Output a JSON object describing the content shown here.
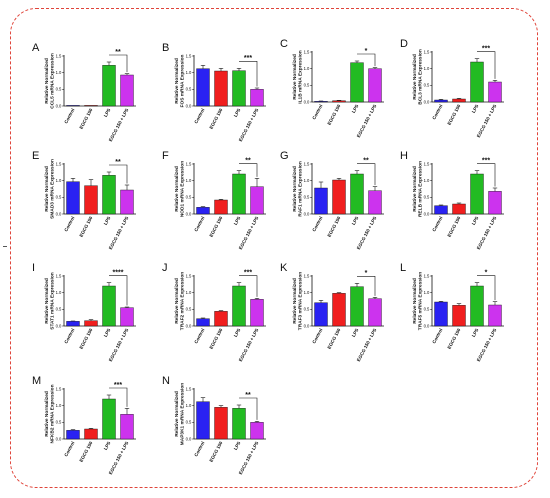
{
  "colors": {
    "Control": "#2a22f2",
    "EGCG 150": "#f01e1e",
    "LPS": "#22bb22",
    "EGCG 150 + LPS": "#cc33ee",
    "frame": "#e0443a"
  },
  "chart_data": [
    {
      "type": "bar",
      "panel": "A",
      "ylabel": "Relative Normalized\nCCL5 mRNA Expression",
      "categories": [
        "Control",
        "EGCG 150",
        "LPS",
        "EGCG 150 + LPS"
      ],
      "values": [
        0.0,
        0.0,
        1.22,
        0.93
      ],
      "errors": [
        0,
        0,
        0.1,
        0.04
      ],
      "ylim": [
        0,
        1.5
      ],
      "yticks": [
        "0.0",
        "0.5",
        "1.0",
        "1.5"
      ],
      "significance": {
        "from": 2,
        "to": 3,
        "label": "**"
      }
    },
    {
      "type": "bar",
      "panel": "B",
      "ylabel": "Relative Normalized\nFOS mRNA Expression",
      "categories": [
        "Control",
        "EGCG 150",
        "LPS",
        "EGCG 150 + LPS"
      ],
      "values": [
        1.12,
        1.05,
        1.06,
        0.5
      ],
      "errors": [
        0.1,
        0.08,
        0.07,
        0.04
      ],
      "ylim": [
        0,
        1.5
      ],
      "yticks": [
        "0.0",
        "0.5",
        "1.0",
        "1.5"
      ],
      "significance": {
        "from": 2,
        "to": 3,
        "label": "***"
      }
    },
    {
      "type": "bar",
      "panel": "C",
      "ylabel": "Relative Normalized\nIL1B mRNA Expression",
      "categories": [
        "Control",
        "EGCG 150",
        "LPS",
        "EGCG 150 + LPS"
      ],
      "values": [
        0.02,
        0.04,
        1.18,
        1.0
      ],
      "errors": [
        0.01,
        0.01,
        0.05,
        0.03
      ],
      "ylim": [
        0,
        1.5
      ],
      "yticks": [
        "0.0",
        "0.5",
        "1.0",
        "1.5"
      ],
      "significance": {
        "from": 2,
        "to": 3,
        "label": "*"
      }
    },
    {
      "type": "bar",
      "panel": "D",
      "ylabel": "Relative Normalized\nBCL3 mRNA Expression",
      "categories": [
        "Control",
        "EGCG 150",
        "LPS",
        "EGCG 150 + LPS"
      ],
      "values": [
        0.06,
        0.09,
        1.2,
        0.6
      ],
      "errors": [
        0.02,
        0.02,
        0.1,
        0.05
      ],
      "ylim": [
        0,
        1.5
      ],
      "yticks": [
        "0.0",
        "0.5",
        "1.0",
        "1.5"
      ],
      "significance": {
        "from": 2,
        "to": 3,
        "label": "***"
      }
    },
    {
      "type": "bar",
      "panel": "E",
      "ylabel": "Relative Normalized\nSMAD3 mRNA Expression",
      "categories": [
        "Control",
        "EGCG 150",
        "LPS",
        "EGCG 150 + LPS"
      ],
      "values": [
        0.97,
        0.85,
        1.16,
        0.72
      ],
      "errors": [
        0.1,
        0.18,
        0.1,
        0.15
      ],
      "ylim": [
        0,
        1.5
      ],
      "yticks": [
        "0.0",
        "0.5",
        "1.0",
        "1.5"
      ],
      "significance": {
        "from": 2,
        "to": 3,
        "label": "**"
      }
    },
    {
      "type": "bar",
      "panel": "F",
      "ylabel": "Relative Normalized\nNOD1 mRNA Expression",
      "categories": [
        "Control",
        "EGCG 150",
        "LPS",
        "EGCG 150 + LPS"
      ],
      "values": [
        0.2,
        0.42,
        1.2,
        0.82
      ],
      "errors": [
        0.02,
        0.02,
        0.1,
        0.25
      ],
      "ylim": [
        0,
        1.5
      ],
      "yticks": [
        "0.0",
        "0.5",
        "1.0",
        "1.5"
      ],
      "significance": {
        "from": 2,
        "to": 3,
        "label": "**"
      }
    },
    {
      "type": "bar",
      "panel": "G",
      "ylabel": "Relative Normalized\nRAF1 mRNA Expression",
      "categories": [
        "Control",
        "EGCG 150",
        "LPS",
        "EGCG 150 + LPS"
      ],
      "values": [
        0.78,
        1.02,
        1.2,
        0.7
      ],
      "errors": [
        0.18,
        0.05,
        0.1,
        0.12
      ],
      "ylim": [
        0,
        1.5
      ],
      "yticks": [
        "0.0",
        "0.5",
        "1.0",
        "1.5"
      ],
      "significance": {
        "from": 2,
        "to": 3,
        "label": "**"
      }
    },
    {
      "type": "bar",
      "panel": "H",
      "ylabel": "Relative Normalized\nRELB mRNA Expression",
      "categories": [
        "Control",
        "EGCG 150",
        "LPS",
        "EGCG 150 + LPS"
      ],
      "values": [
        0.25,
        0.3,
        1.2,
        0.68
      ],
      "errors": [
        0.02,
        0.03,
        0.1,
        0.1
      ],
      "ylim": [
        0,
        1.5
      ],
      "yticks": [
        "0.0",
        "0.5",
        "1.0",
        "1.5"
      ],
      "significance": {
        "from": 2,
        "to": 3,
        "label": "***"
      }
    },
    {
      "type": "bar",
      "panel": "I",
      "ylabel": "Relative Normalized\nSTAT1 mRNA Expression",
      "categories": [
        "Control",
        "EGCG 150",
        "LPS",
        "EGCG 150 + LPS"
      ],
      "values": [
        0.14,
        0.16,
        1.2,
        0.55
      ],
      "errors": [
        0.01,
        0.03,
        0.1,
        0.02
      ],
      "ylim": [
        0,
        1.5
      ],
      "yticks": [
        "0.0",
        "0.5",
        "1.0",
        "1.5"
      ],
      "significance": {
        "from": 2,
        "to": 3,
        "label": "****"
      }
    },
    {
      "type": "bar",
      "panel": "J",
      "ylabel": "Relative Normalized\nTRAF2 mRNA Expression",
      "categories": [
        "Control",
        "EGCG 150",
        "LPS",
        "EGCG 150 + LPS"
      ],
      "values": [
        0.22,
        0.44,
        1.2,
        0.8
      ],
      "errors": [
        0.02,
        0.02,
        0.1,
        0.03
      ],
      "ylim": [
        0,
        1.5
      ],
      "yticks": [
        "0.0",
        "0.5",
        "1.0",
        "1.5"
      ],
      "significance": {
        "from": 2,
        "to": 3,
        "label": "***"
      }
    },
    {
      "type": "bar",
      "panel": "K",
      "ylabel": "Relative Normalized\nTRAF3 mRNA Expression",
      "categories": [
        "Control",
        "EGCG 150",
        "LPS",
        "EGCG 150 + LPS"
      ],
      "values": [
        0.7,
        0.98,
        1.18,
        0.82
      ],
      "errors": [
        0.07,
        0.02,
        0.1,
        0.04
      ],
      "ylim": [
        0,
        1.5
      ],
      "yticks": [
        "0.0",
        "0.5",
        "1.0",
        "1.5"
      ],
      "significance": {
        "from": 2,
        "to": 3,
        "label": "*"
      }
    },
    {
      "type": "bar",
      "panel": "L",
      "ylabel": "Relative Normalized\nTRAF5 mRNA Expression",
      "categories": [
        "Control",
        "EGCG 150",
        "LPS",
        "EGCG 150 + LPS"
      ],
      "values": [
        0.72,
        0.62,
        1.2,
        0.63
      ],
      "errors": [
        0.02,
        0.05,
        0.1,
        0.1
      ],
      "ylim": [
        0,
        1.5
      ],
      "yticks": [
        "0.0",
        "0.5",
        "1.0",
        "1.5"
      ],
      "significance": {
        "from": 2,
        "to": 3,
        "label": "*"
      }
    },
    {
      "type": "bar",
      "panel": "M",
      "ylabel": "Relative Normalized\nNFKB2 mRNA Expression",
      "categories": [
        "Control",
        "EGCG 150",
        "LPS",
        "EGCG 150 + LPS"
      ],
      "values": [
        0.26,
        0.3,
        1.2,
        0.74
      ],
      "errors": [
        0.02,
        0.02,
        0.12,
        0.18
      ],
      "ylim": [
        0,
        1.5
      ],
      "yticks": [
        "0.0",
        "0.5",
        "1.0",
        "1.5"
      ],
      "significance": {
        "from": 2,
        "to": 3,
        "label": "***"
      }
    },
    {
      "type": "bar",
      "panel": "N",
      "ylabel": "Relative Normalized\nMAP3K1 mRNA Expression",
      "categories": [
        "Control",
        "EGCG 150",
        "LPS",
        "EGCG 150 + LPS"
      ],
      "values": [
        1.12,
        0.95,
        0.92,
        0.5
      ],
      "errors": [
        0.12,
        0.05,
        0.1,
        0.03
      ],
      "ylim": [
        0,
        1.5
      ],
      "yticks": [
        "0.0",
        "0.5",
        "1.0",
        "1.5"
      ],
      "significance": {
        "from": 2,
        "to": 3,
        "label": "**"
      }
    }
  ]
}
